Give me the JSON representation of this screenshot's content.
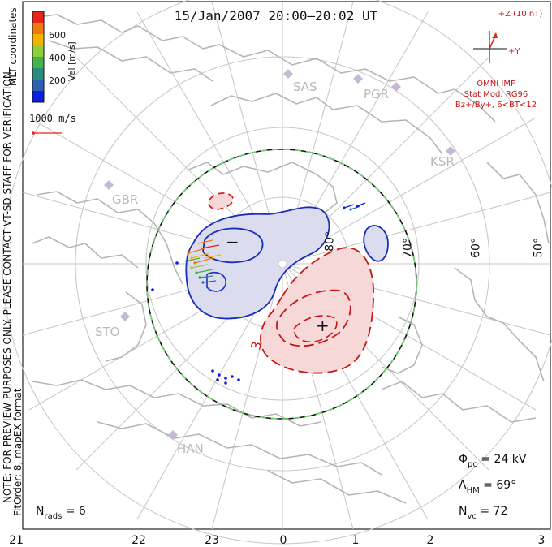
{
  "title": "15/Jan/2007 20:00–20:02 UT",
  "colorbar": {
    "label": "Vel [m/s]",
    "ticks": [
      "600",
      "400",
      "200"
    ],
    "colors": [
      "#e8231b",
      "#f07a12",
      "#f3b300",
      "#8fd03a",
      "#45b24a",
      "#2a8b78",
      "#2f5fb3",
      "#0b1fe0"
    ]
  },
  "coord_system": "MLT coordinates",
  "scale_vector_label": "1000 m/s",
  "imf": {
    "z_label": "+Z (10 nT)",
    "y_label": "+Y",
    "source": "OMNI IMF",
    "model": "Stat Mod: RG96",
    "condition": "Bz+/By+, 6<BT<12"
  },
  "stations": [
    "SAS",
    "PGR",
    "KSR",
    "GBR",
    "STO",
    "HAN"
  ],
  "lat_labels": [
    "80°",
    "70°",
    "60°",
    "50°"
  ],
  "contour_label": "3",
  "markers": {
    "min": "−",
    "max": "+"
  },
  "side_note": "NOTE: FOR PREVIEW PURPOSES ONLY. PLEASE CONTACT VT-SD STAFF FOR VERIFICATION.",
  "fit_order": "FitOrder: 8, mapEX format",
  "stats": {
    "phi_pc_sym": "Φ",
    "phi_pc_sub": "pc",
    "phi_pc_val": " = 24 kV",
    "lambda_sym": "Λ",
    "lambda_sub": "HM",
    "lambda_val": " = 69°",
    "nvc_sym": "N",
    "nvc_sub": "vc",
    "nvc_val": " = 72",
    "nrads_sym": "N",
    "nrads_sub": "rads",
    "nrads_val": " = 6"
  },
  "mlt_ticks": [
    "21",
    "22",
    "23",
    "0",
    "1",
    "2",
    "3"
  ]
}
